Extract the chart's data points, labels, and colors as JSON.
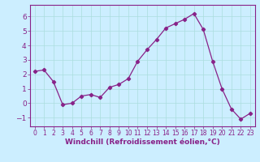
{
  "x": [
    0,
    1,
    2,
    3,
    4,
    5,
    6,
    7,
    8,
    9,
    10,
    11,
    12,
    13,
    14,
    15,
    16,
    17,
    18,
    19,
    20,
    21,
    22,
    23
  ],
  "y": [
    2.2,
    2.3,
    1.5,
    -0.1,
    0.0,
    0.5,
    0.6,
    0.4,
    1.1,
    1.3,
    1.7,
    2.9,
    3.7,
    4.4,
    5.2,
    5.5,
    5.8,
    6.2,
    5.1,
    2.9,
    1.0,
    -0.4,
    -1.1,
    -0.7
  ],
  "line_color": "#882288",
  "marker": "D",
  "marker_size": 2.2,
  "bg_color": "#cceeff",
  "grid_color": "#aadddd",
  "xlabel": "Windchill (Refroidissement éolien,°C)",
  "xlabel_color": "#882288",
  "tick_color": "#882288",
  "ylim": [
    -1.6,
    6.8
  ],
  "xlim": [
    -0.5,
    23.5
  ],
  "yticks": [
    -1,
    0,
    1,
    2,
    3,
    4,
    5,
    6
  ],
  "xticks": [
    0,
    1,
    2,
    3,
    4,
    5,
    6,
    7,
    8,
    9,
    10,
    11,
    12,
    13,
    14,
    15,
    16,
    17,
    18,
    19,
    20,
    21,
    22,
    23
  ],
  "ytick_fontsize": 6.5,
  "xtick_fontsize": 5.5,
  "xlabel_fontsize": 6.5
}
